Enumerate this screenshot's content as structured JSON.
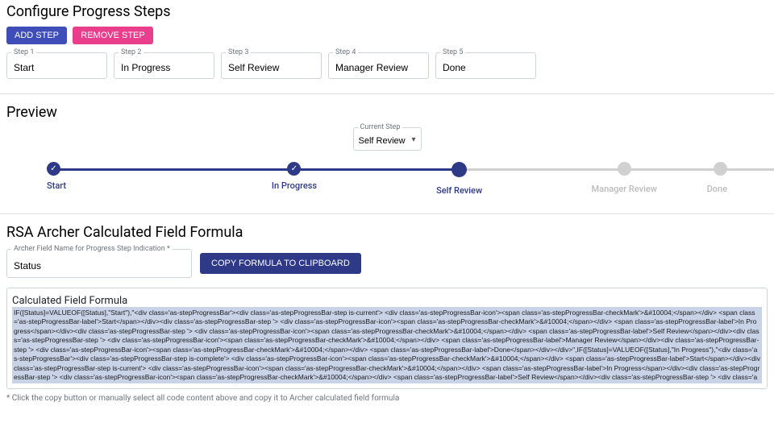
{
  "configure": {
    "title": "Configure Progress Steps",
    "add_btn": "ADD STEP",
    "remove_btn": "REMOVE STEP",
    "steps": [
      {
        "label": "Step 1",
        "value": "Start"
      },
      {
        "label": "Step 2",
        "value": "In Progress"
      },
      {
        "label": "Step 3",
        "value": "Self Review"
      },
      {
        "label": "Step 4",
        "value": "Manager Review"
      },
      {
        "label": "Step 5",
        "value": "Done"
      }
    ]
  },
  "preview": {
    "title": "Preview",
    "current_label": "Current Step",
    "current_value": "Self Review",
    "steps": [
      {
        "name": "Start",
        "state": "complete"
      },
      {
        "name": "In Progress",
        "state": "complete"
      },
      {
        "name": "Self Review",
        "state": "current"
      },
      {
        "name": "Manager Review",
        "state": "future"
      },
      {
        "name": "Done",
        "state": "future"
      }
    ],
    "colors": {
      "done": "#2e3a87",
      "todo": "#d0d0d0",
      "text_future": "#bbbbbb"
    }
  },
  "formula": {
    "title": "RSA Archer Calculated Field Formula",
    "field_label": "Archer Field Name for Progress Step Indication *",
    "field_value": "Status",
    "copy_btn": "COPY FORMULA TO CLIPBOARD",
    "legend": "Calculated Field Formula",
    "content": "IF([Status]=VALUEOF([Status],\"Start\"),\"<div class='as-stepProgressBar'><div class='as-stepProgressBar-step is-current'> <div class='as-stepProgressBar-icon'><span class='as-stepProgressBar-checkMark'>&#10004;</span></div>   <span class='as-stepProgressBar-label'>Start</span></div><div class='as-stepProgressBar-step '> <div class='as-stepProgressBar-icon'><span class='as-stepProgressBar-checkMark'>&#10004;</span></div>   <span class='as-stepProgressBar-label'>In Progress</span></div><div class='as-stepProgressBar-step '> <div class='as-stepProgressBar-icon'><span class='as-stepProgressBar-checkMark'>&#10004;</span></div>   <span class='as-stepProgressBar-label'>Self Review</span></div><div class='as-stepProgressBar-step '> <div class='as-stepProgressBar-icon'><span class='as-stepProgressBar-checkMark'>&#10004;</span></div>   <span class='as-stepProgressBar-label'>Manager Review</span></div><div class='as-stepProgressBar-step '> <div class='as-stepProgressBar-icon'><span class='as-stepProgressBar-checkMark'>&#10004;</span></div>   <span class='as-stepProgressBar-label'>Done</span></div></div>\",IF([Status]=VALUEOF([Status],\"In Progress\"),\"<div class='as-stepProgressBar'><div class='as-stepProgressBar-step is-complete'> <div class='as-stepProgressBar-icon'><span class='as-stepProgressBar-checkMark'>&#10004;</span></div>   <span class='as-stepProgressBar-label'>Start</span></div><div class='as-stepProgressBar-step is-current'> <div class='as-stepProgressBar-icon'><span class='as-stepProgressBar-checkMark'>&#10004;</span></div>   <span class='as-stepProgressBar-label'>In Progress</span></div><div class='as-stepProgressBar-step '> <div class='as-stepProgressBar-icon'><span class='as-stepProgressBar-checkMark'>&#10004;</span></div>   <span class='as-stepProgressBar-label'>Self Review</span></div><div class='as-stepProgressBar-step '> <div class='as-stepProgressBar-icon'><span class='as-stepProgressBar-checkMark'>&#10004;</span></div>   <span class='as-stepProgressBar-label'>Manager Review</span></div><div class='as-stepProgressBar-step '> <div class='as-stepProgressBar-icon'><span class='as-stepProgressBar-checkMark'>&#10004;</span></div>   <span class='as-stepProgressBar-label'>Done</span></div></div>\",IF([Status]=VALUEOF([Status],\"Self Review\"),\"<div class='as-stepProgressBar'><div class='as-stepProgressBar-step is-complete'> <div class='as-stepProgressBar-icon'><span class='as-stepProgressBar-checkMark'>&#10004;</span></div>   <span class='as-",
    "hint": "* Click the copy button or manually select all code content above and copy it to Archer calculated field formula"
  }
}
